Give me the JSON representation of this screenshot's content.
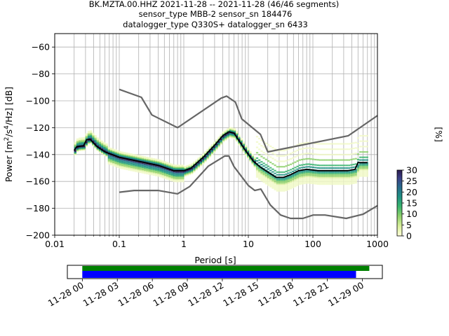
{
  "title": {
    "line1": "BK.MZTA.00.HHZ   2021-11-28 -- 2021-11-28  (46/46 segments)",
    "line2": "sensor_type MBB-2 sensor_sn 184476",
    "line3": "datalogger_type Q330S+ datalogger_sn 6433"
  },
  "chart_data": [
    {
      "type": "heatmap",
      "xlabel": "Period [s]",
      "ylabel": "Power [m²/s⁴/Hz] [dB]",
      "x_scale": "log",
      "xlim": [
        0.01,
        1000
      ],
      "ylim": [
        -200,
        -50
      ],
      "xticks": [
        "0.01",
        "0.1",
        "1",
        "10",
        "100",
        "1000"
      ],
      "yticks": [
        "−60",
        "−80",
        "−100",
        "−120",
        "−140",
        "−160",
        "−180",
        "−200"
      ],
      "grid": true,
      "colorbar": {
        "label": "[%]",
        "ticks": [
          "0",
          "5",
          "10",
          "15",
          "20",
          "25",
          "30"
        ],
        "range": [
          0,
          30
        ]
      },
      "series": [
        {
          "role": "new-high-noise-model",
          "color": "#666666",
          "points": [
            [
              0.1,
              -91.5
            ],
            [
              0.22,
              -97.4
            ],
            [
              0.32,
              -110.5
            ],
            [
              0.8,
              -120
            ],
            [
              3.8,
              -98
            ],
            [
              4.6,
              -96.5
            ],
            [
              6.3,
              -101
            ],
            [
              7.9,
              -113.5
            ],
            [
              15.4,
              -125
            ],
            [
              20,
              -138
            ],
            [
              354,
              -126
            ],
            [
              1000,
              -111
            ]
          ]
        },
        {
          "role": "new-low-noise-model",
          "color": "#666666",
          "points": [
            [
              0.1,
              -168
            ],
            [
              0.17,
              -166.7
            ],
            [
              0.4,
              -166.7
            ],
            [
              0.8,
              -169.2
            ],
            [
              1.24,
              -163.7
            ],
            [
              2.4,
              -148.6
            ],
            [
              4.3,
              -141.1
            ],
            [
              5.0,
              -141.1
            ],
            [
              6.0,
              -149
            ],
            [
              10,
              -163
            ],
            [
              12.6,
              -166.7
            ],
            [
              15.6,
              -165.7
            ],
            [
              21.9,
              -177.5
            ],
            [
              31.6,
              -185
            ],
            [
              45,
              -187.5
            ],
            [
              70,
              -187.5
            ],
            [
              101,
              -185
            ],
            [
              154,
              -185
            ],
            [
              328,
              -187.5
            ],
            [
              600,
              -184.4
            ],
            [
              1000,
              -178
            ]
          ]
        },
        {
          "role": "mode",
          "color": "#000000",
          "points": [
            [
              0.02,
              -137
            ],
            [
              0.022,
              -134
            ],
            [
              0.028,
              -133.5
            ],
            [
              0.031,
              -129
            ],
            [
              0.035,
              -128.5
            ],
            [
              0.045,
              -134
            ],
            [
              0.06,
              -138
            ],
            [
              0.1,
              -142
            ],
            [
              0.2,
              -145
            ],
            [
              0.4,
              -148
            ],
            [
              0.7,
              -152
            ],
            [
              1.0,
              -152
            ],
            [
              1.3,
              -150
            ],
            [
              2,
              -142
            ],
            [
              3,
              -133
            ],
            [
              4,
              -126
            ],
            [
              5,
              -123
            ],
            [
              6,
              -124
            ],
            [
              7,
              -129
            ],
            [
              9,
              -137
            ],
            [
              12,
              -145
            ],
            [
              15,
              -149
            ],
            [
              20,
              -153
            ],
            [
              27,
              -157
            ],
            [
              35,
              -157
            ],
            [
              45,
              -155
            ],
            [
              60,
              -152
            ],
            [
              80,
              -151
            ],
            [
              120,
              -152
            ],
            [
              200,
              -152
            ],
            [
              350,
              -152
            ],
            [
              450,
              -151
            ],
            [
              500,
              -146
            ],
            [
              700,
              -146
            ]
          ]
        }
      ]
    },
    {
      "type": "bar",
      "orientation": "horizontal",
      "x_scale": "time",
      "xlim": [
        "2021-11-27 22:43",
        "2021-11-29 01:43"
      ],
      "xticks": [
        "11-28 00",
        "11-28 03",
        "11-28 06",
        "11-28 09",
        "11-28 12",
        "11-28 15",
        "11-28 18",
        "11-28 21",
        "11-29 00"
      ],
      "series": [
        {
          "name": "",
          "color": "#008000",
          "start": "2021-11-28 00:00",
          "end": "2021-11-29 00:36"
        },
        {
          "name": "",
          "color": "#0000ff",
          "start": "2021-11-28 00:00",
          "end": "2021-11-28 23:28"
        }
      ]
    }
  ]
}
